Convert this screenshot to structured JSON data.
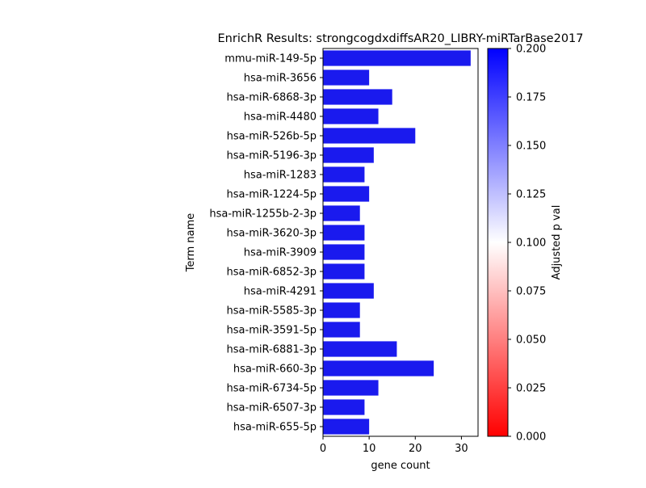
{
  "chart_data": {
    "type": "bar",
    "orientation": "horizontal",
    "title": "EnrichR Results: strongcogdxdiffsAR20_LIBRY-miRTarBase2017",
    "xlabel": "gene count",
    "ylabel": "Term name",
    "xlim": [
      0,
      33.6
    ],
    "xticks": [
      0,
      10,
      20,
      30
    ],
    "categories": [
      "mmu-miR-149-5p",
      "hsa-miR-3656",
      "hsa-miR-6868-3p",
      "hsa-miR-4480",
      "hsa-miR-526b-5p",
      "hsa-miR-5196-3p",
      "hsa-miR-1283",
      "hsa-miR-1224-5p",
      "hsa-miR-1255b-2-3p",
      "hsa-miR-3620-3p",
      "hsa-miR-3909",
      "hsa-miR-6852-3p",
      "hsa-miR-4291",
      "hsa-miR-5585-3p",
      "hsa-miR-3591-5p",
      "hsa-miR-6881-3p",
      "hsa-miR-660-3p",
      "hsa-miR-6734-5p",
      "hsa-miR-6507-3p",
      "hsa-miR-655-5p"
    ],
    "values": [
      32,
      10,
      15,
      12,
      20,
      11,
      9,
      10,
      8,
      9,
      9,
      9,
      11,
      8,
      8,
      16,
      24,
      12,
      9,
      10
    ],
    "bar_color": "#1a1aee",
    "colorbar": {
      "label": "Adjusted p val",
      "range": [
        0.0,
        0.2
      ],
      "ticks": [
        "0.000",
        "0.025",
        "0.050",
        "0.075",
        "0.100",
        "0.125",
        "0.150",
        "0.175",
        "0.200"
      ],
      "colormap": [
        "#ff0000",
        "#ffffff",
        "#0000ff"
      ]
    },
    "grid": false,
    "legend": "none"
  }
}
